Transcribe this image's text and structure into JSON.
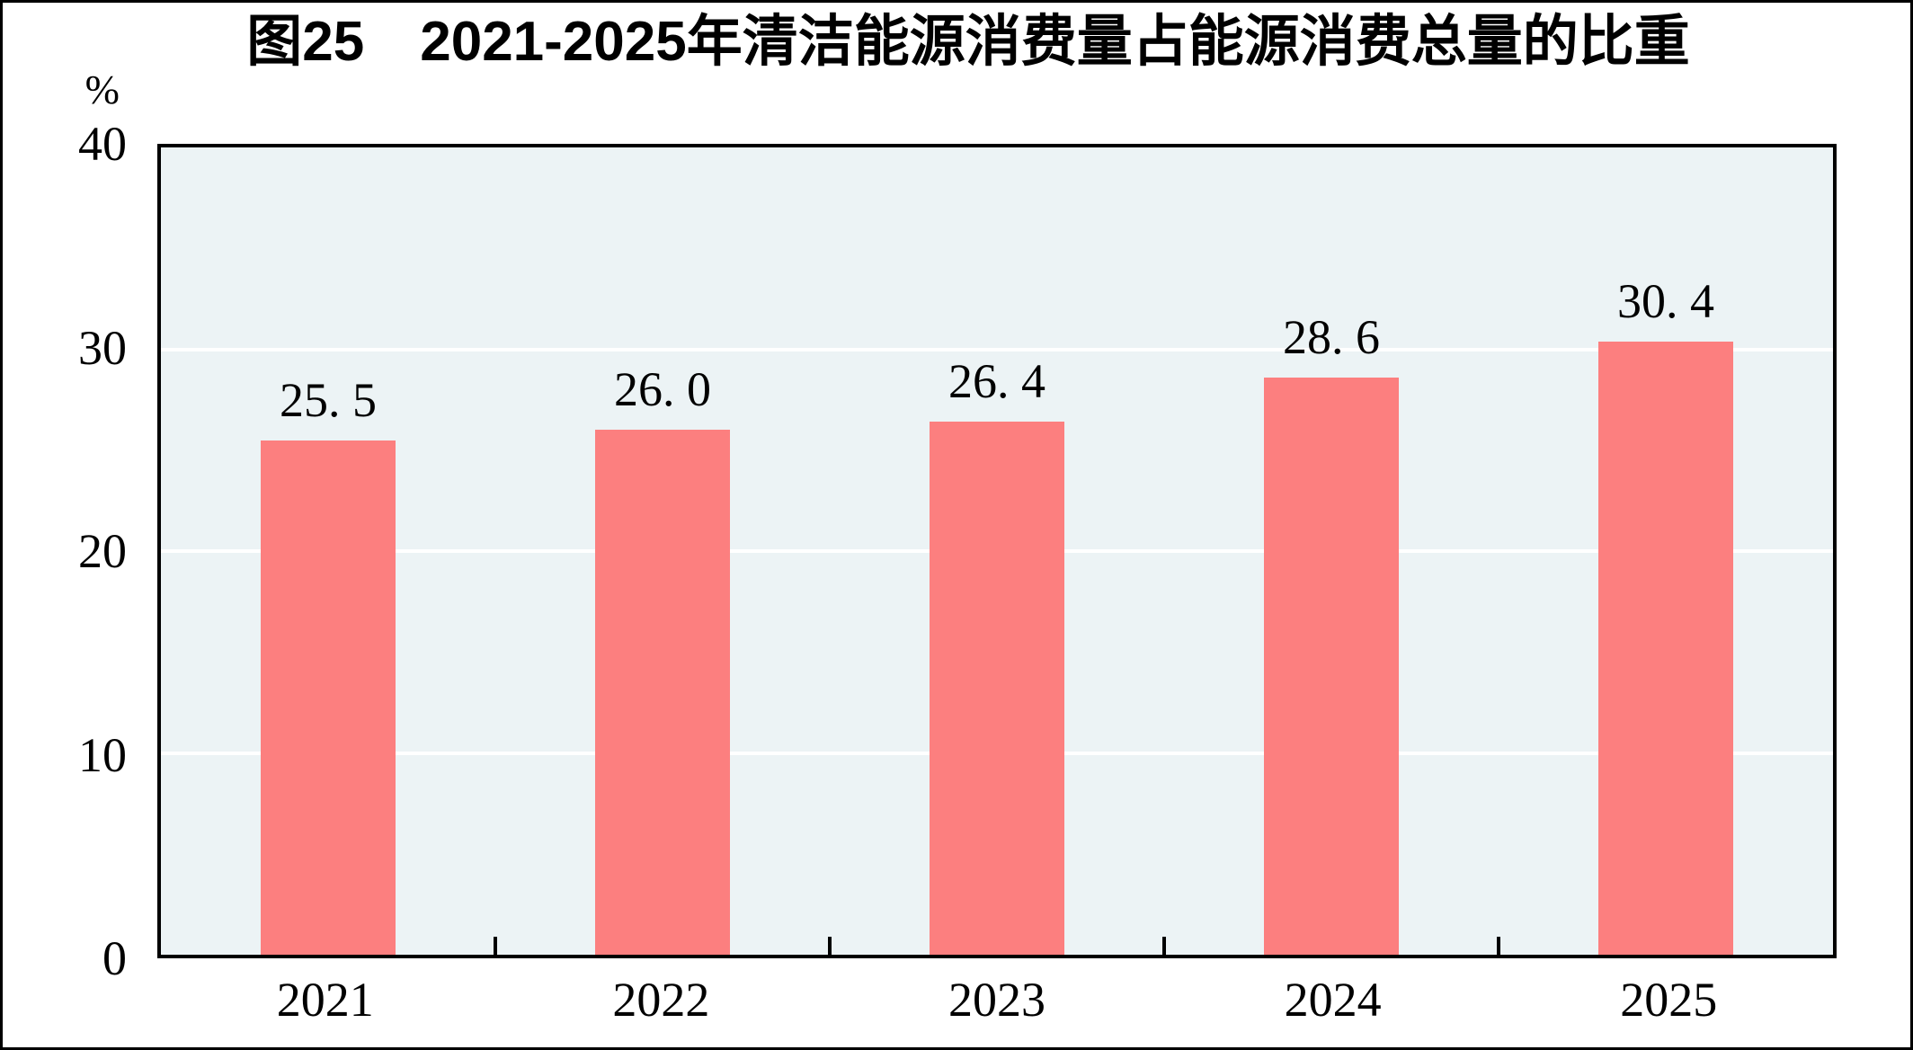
{
  "figure": {
    "title": "图25　2021-2025年清洁能源消费量占能源消费总量的比重",
    "unit_label": "%"
  },
  "chart_data": {
    "type": "bar",
    "title": "图25　2021-2025年清洁能源消费量占能源消费总量的比重",
    "categories": [
      "2021",
      "2022",
      "2023",
      "2024",
      "2025"
    ],
    "values": [
      25.5,
      26.0,
      26.4,
      28.6,
      30.4
    ],
    "value_labels": [
      "25. 5",
      "26. 0",
      "26. 4",
      "28. 6",
      "30. 4"
    ],
    "xlabel": "",
    "ylabel": "%",
    "ylim": [
      0,
      40
    ],
    "yticks": [
      0,
      10,
      20,
      30,
      40
    ],
    "grid": "horizontal white gridlines at 10, 20, 30",
    "legend": "none"
  },
  "colors": {
    "bar": "#fc7f7f",
    "plot_background": "#ecf3f5",
    "gridline": "#ffffff",
    "axis": "#000000",
    "text": "#000000",
    "page_background": "#ffffff"
  }
}
